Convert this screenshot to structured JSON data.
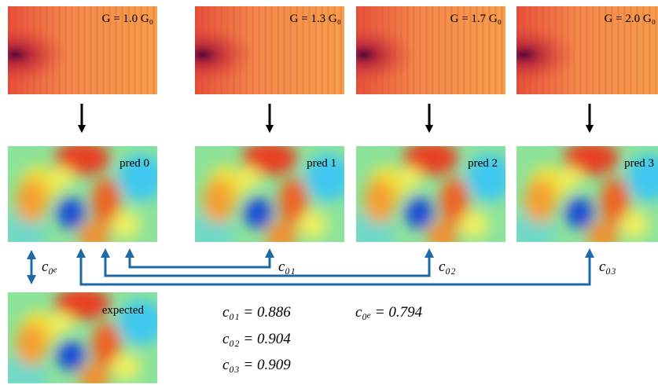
{
  "inputs": [
    {
      "label": "G = 1.0 G₀"
    },
    {
      "label": "G = 1.3 G₀"
    },
    {
      "label": "G = 1.7 G₀"
    },
    {
      "label": "G = 2.0 G₀"
    }
  ],
  "predictions": [
    {
      "label": "pred 0"
    },
    {
      "label": "pred 1"
    },
    {
      "label": "pred 2"
    },
    {
      "label": "pred 3"
    }
  ],
  "expected": {
    "label": "expected"
  },
  "links": [
    {
      "label": "c₀ₑ"
    },
    {
      "label": "c₀₁"
    },
    {
      "label": "c₀₂"
    },
    {
      "label": "c₀₃"
    }
  ],
  "correlations": [
    {
      "label": "c₀₁ = 0.886"
    },
    {
      "label": "c₀₂ = 0.904"
    },
    {
      "label": "c₀₃ = 0.909"
    },
    {
      "label": "c₀ₑ = 0.794"
    }
  ]
}
